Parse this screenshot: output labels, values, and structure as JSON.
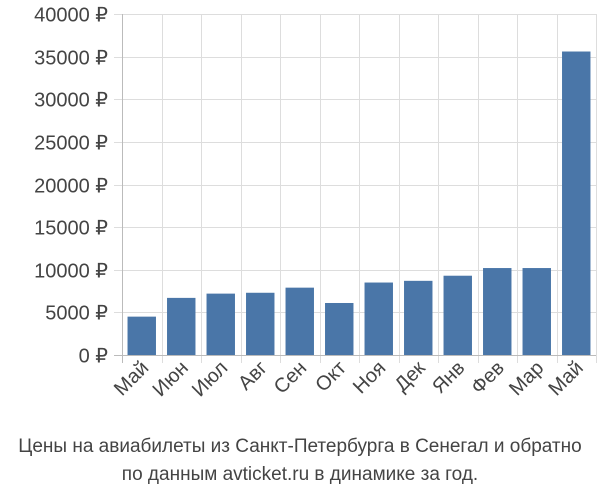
{
  "chart_data": {
    "type": "bar",
    "categories": [
      "Май",
      "Июн",
      "Июл",
      "Авг",
      "Сен",
      "Окт",
      "Ноя",
      "Дек",
      "Янв",
      "Фев",
      "Мар",
      "Май"
    ],
    "values": [
      4500,
      6700,
      7200,
      7300,
      7900,
      6100,
      8500,
      8700,
      9300,
      10200,
      10200,
      35600
    ],
    "ylim": [
      0,
      40000
    ],
    "yticks": [
      0,
      5000,
      10000,
      15000,
      20000,
      25000,
      30000,
      35000,
      40000
    ],
    "ytick_labels": [
      "0 ₽",
      "5000 ₽",
      "10000 ₽",
      "15000 ₽",
      "20000 ₽",
      "25000 ₽",
      "30000 ₽",
      "35000 ₽",
      "40000 ₽"
    ],
    "grid": true,
    "bar_color": "#4a76a8",
    "grid_color": "#dddddd"
  },
  "caption": {
    "line1": "Цены на авиабилеты из Санкт-Петербурга в Сенегал и обратно",
    "line2": "по данным avticket.ru в динамике за год."
  }
}
